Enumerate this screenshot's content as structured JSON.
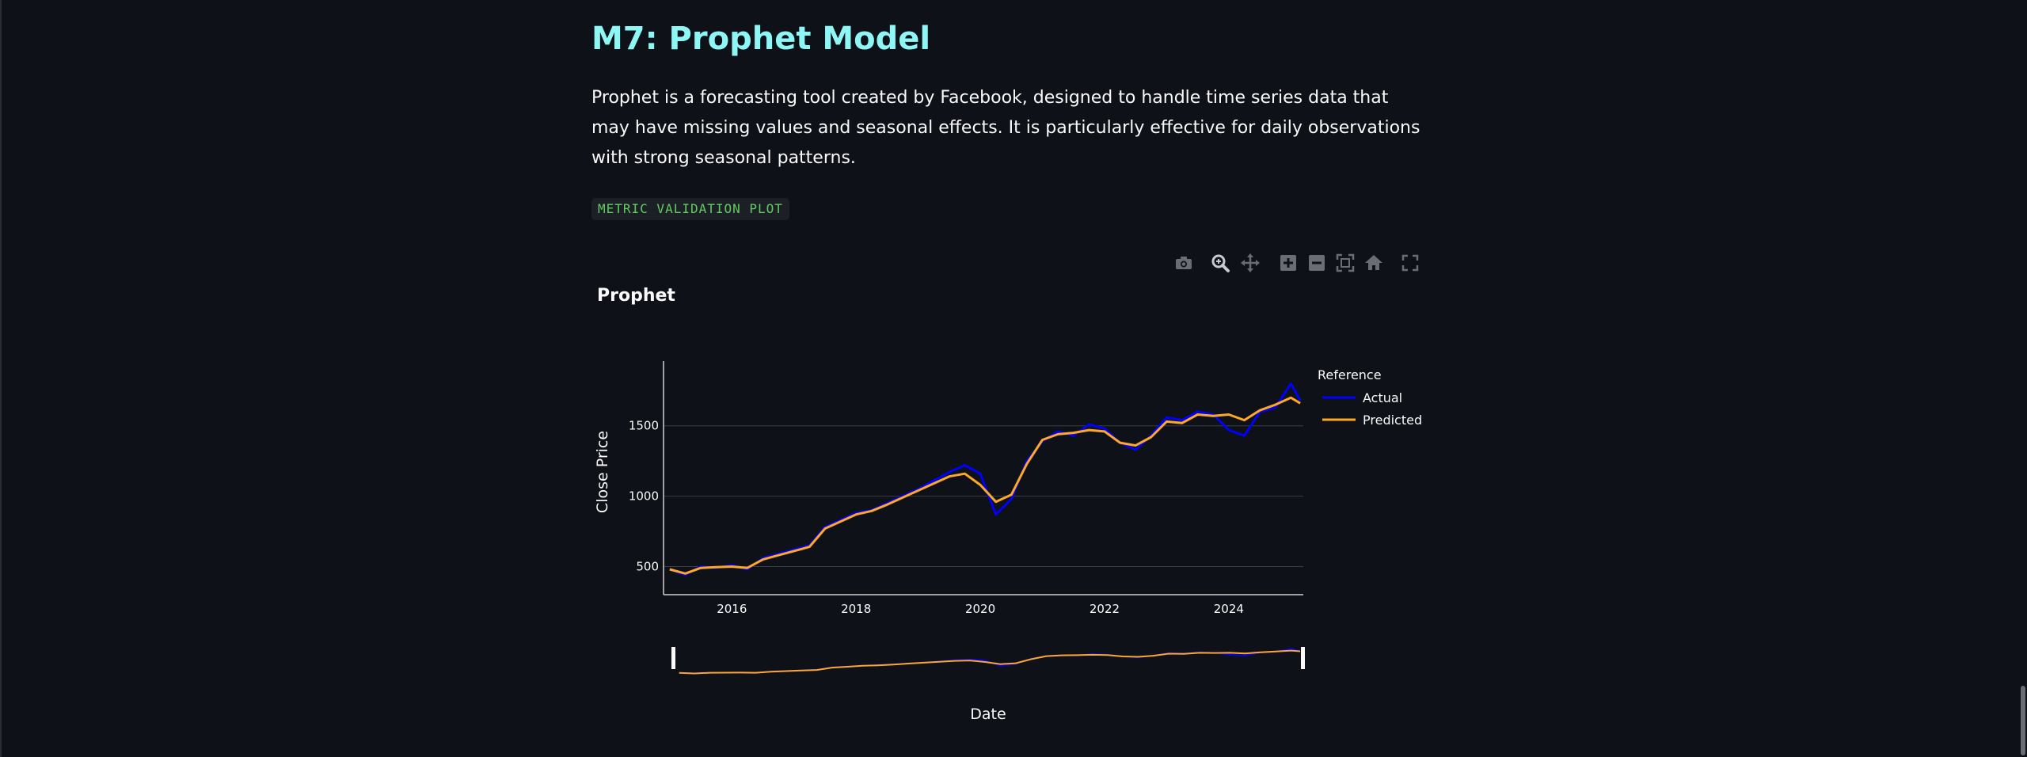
{
  "section": {
    "title": "M7: Prophet Model",
    "description": "Prophet is a forecasting tool created by Facebook, designed to handle time series data that may have missing values and seasonal effects. It is particularly effective for daily observations with strong seasonal patterns.",
    "code_label": "METRIC VALIDATION PLOT"
  },
  "modebar": {
    "icons": [
      "camera-icon",
      "zoom-icon",
      "pan-icon",
      "zoom-in-icon",
      "zoom-out-icon",
      "autoscale-icon",
      "home-icon",
      "fullscreen-icon"
    ]
  },
  "colors": {
    "background": "#0e1117",
    "heading": "#8ff6f6",
    "actual": "#0000ff",
    "predicted": "#ffa726",
    "code_text": "#5fcc5f"
  },
  "chart_data": {
    "type": "line",
    "title": "Prophet",
    "xlabel": "Date",
    "ylabel": "Close Price",
    "legend_title": "Reference",
    "legend_position": "top-right",
    "x_ticks": [
      "2016",
      "2018",
      "2020",
      "2022",
      "2024"
    ],
    "y_ticks": [
      500,
      1000,
      1500
    ],
    "xlim": [
      2014.9,
      2025.2
    ],
    "ylim": [
      300,
      1960
    ],
    "grid": true,
    "range_slider": true,
    "x": [
      2015.0,
      2015.25,
      2015.5,
      2015.75,
      2016.0,
      2016.25,
      2016.5,
      2016.75,
      2017.0,
      2017.25,
      2017.5,
      2017.75,
      2018.0,
      2018.25,
      2018.5,
      2018.75,
      2019.0,
      2019.25,
      2019.5,
      2019.75,
      2020.0,
      2020.25,
      2020.5,
      2020.75,
      2021.0,
      2021.25,
      2021.5,
      2021.75,
      2022.0,
      2022.25,
      2022.5,
      2022.75,
      2023.0,
      2023.25,
      2023.5,
      2023.75,
      2024.0,
      2024.25,
      2024.5,
      2024.75,
      2025.0,
      2025.15
    ],
    "series": [
      {
        "name": "Actual",
        "color": "#0000ff",
        "values": [
          480,
          440,
          500,
          490,
          510,
          480,
          560,
          590,
          620,
          650,
          780,
          830,
          880,
          900,
          950,
          1000,
          1050,
          1110,
          1170,
          1220,
          1160,
          870,
          980,
          1250,
          1390,
          1460,
          1430,
          1510,
          1480,
          1380,
          1330,
          1430,
          1560,
          1540,
          1600,
          1580,
          1470,
          1430,
          1600,
          1630,
          1800,
          1680
        ]
      },
      {
        "name": "Predicted",
        "color": "#ffa726",
        "values": [
          480,
          450,
          490,
          495,
          500,
          490,
          550,
          580,
          610,
          640,
          770,
          820,
          870,
          895,
          940,
          990,
          1040,
          1090,
          1140,
          1160,
          1080,
          960,
          1010,
          1230,
          1400,
          1440,
          1450,
          1470,
          1460,
          1380,
          1360,
          1420,
          1530,
          1520,
          1580,
          1570,
          1580,
          1540,
          1610,
          1650,
          1700,
          1660
        ]
      }
    ]
  }
}
